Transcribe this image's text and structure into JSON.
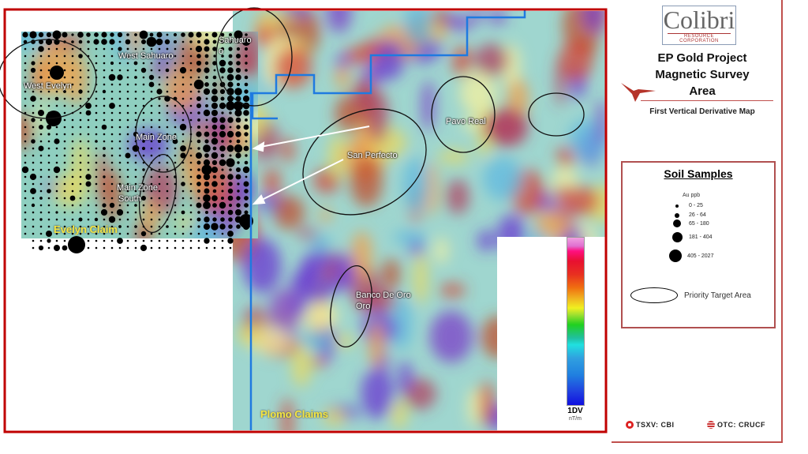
{
  "logo": {
    "name": "Colibri",
    "subtitle": "RESOURCE CORPORATION"
  },
  "title": [
    "EP Gold Project",
    "Magnetic Survey",
    "Area"
  ],
  "subtitle": "First Vertical Derivative Map",
  "legend": {
    "heading": "Soil Samples",
    "unit": "Au ppb",
    "classes": [
      {
        "label": "0 - 25",
        "size": "smallest"
      },
      {
        "label": "26 - 64",
        "size": "small"
      },
      {
        "label": "65 - 180",
        "size": "medium"
      },
      {
        "label": "181 - 404",
        "size": "large"
      },
      {
        "label": "405 - 2027",
        "size": "largest"
      }
    ],
    "priority_label": "Priority Target Area"
  },
  "map": {
    "labels": {
      "west_sahuaro": "West Sahuaro",
      "sahuaro": "Sahuaro",
      "sahuaro_o": "o",
      "west_evelyn": "West Evelyn",
      "main_zone": "Main Zone",
      "main_zone_south_1": "Main Zone",
      "main_zone_south_2": "South",
      "san_perfecto": "San Perfecto",
      "pavo_real": "Pavo Real",
      "banco_1": "Banco De Oro",
      "banco_2": "Oro"
    },
    "claims": {
      "evelyn": "Evelyn Claim",
      "plomo": "Plomo Claims"
    },
    "colors": {
      "frame": "#c00000",
      "boundary": "#1f7ae0",
      "claim_label": "#f5e642"
    }
  },
  "colorbar": {
    "title": "1DV",
    "unit": "nT/m",
    "colors": [
      "#f0a0e0",
      "#ff1080",
      "#e83020",
      "#f07010",
      "#f0f020",
      "#20d020",
      "#20e0e0",
      "#2080e0",
      "#1010e0"
    ]
  },
  "tickers": {
    "tsxv": "TSXV: CBI",
    "otc": "OTC: CRUCF"
  }
}
